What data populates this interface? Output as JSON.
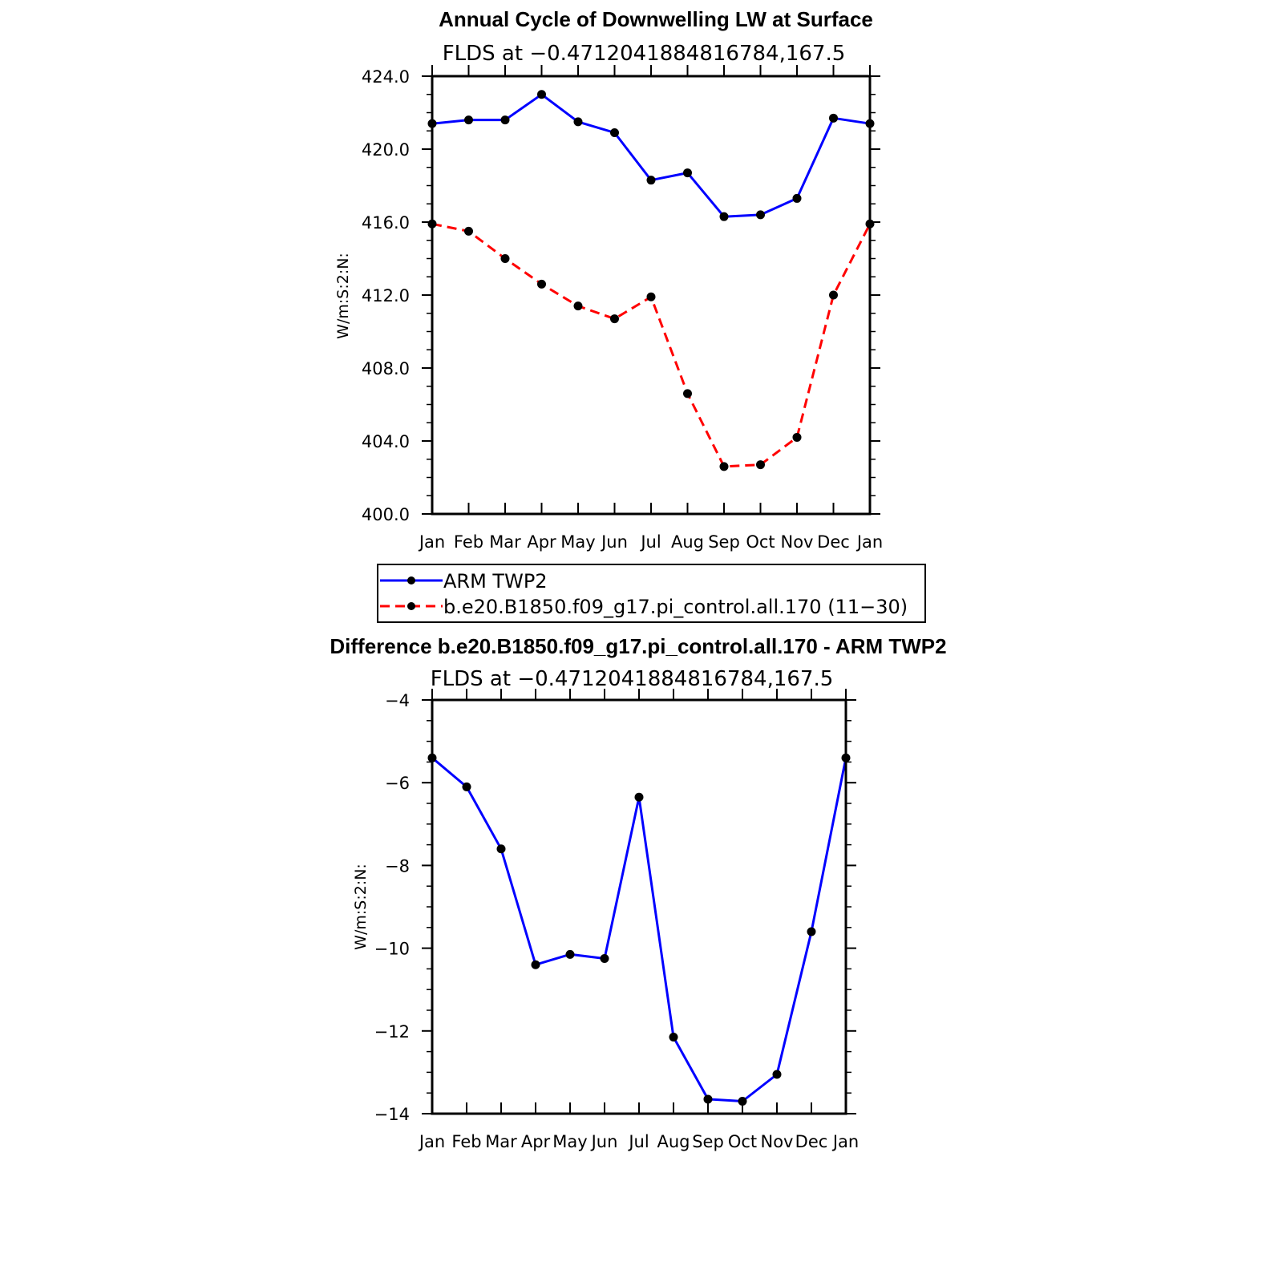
{
  "chart_data": [
    {
      "type": "line",
      "title": "Annual Cycle of Downwelling LW at Surface",
      "subtitle": "FLDS at −0.4712041884816784,167.5",
      "ylabel": "W/m:S:2:N:",
      "xlabel": "",
      "categories": [
        "Jan",
        "Feb",
        "Mar",
        "Apr",
        "May",
        "Jun",
        "Jul",
        "Aug",
        "Sep",
        "Oct",
        "Nov",
        "Dec",
        "Jan"
      ],
      "ylim": [
        400,
        424
      ],
      "yticks": [
        "400.0",
        "404.0",
        "408.0",
        "412.0",
        "416.0",
        "420.0",
        "424.0"
      ],
      "grid": false,
      "legend_position": "below",
      "series": [
        {
          "name": "ARM TWP2",
          "color": "#0000ff",
          "dash": "solid",
          "values": [
            421.4,
            421.6,
            421.6,
            423.0,
            421.5,
            420.9,
            418.3,
            418.7,
            416.3,
            416.4,
            417.3,
            421.7,
            421.4
          ]
        },
        {
          "name": "b.e20.B1850.f09_g17.pi_control.all.170 (11−30)",
          "color": "#ff0000",
          "dash": "dashed",
          "values": [
            415.9,
            415.5,
            414.0,
            412.6,
            411.4,
            410.7,
            411.9,
            406.6,
            402.6,
            402.7,
            404.2,
            412.0,
            415.9
          ]
        }
      ]
    },
    {
      "type": "line",
      "title": "Difference b.e20.B1850.f09_g17.pi_control.all.170 - ARM TWP2",
      "subtitle": "FLDS at −0.4712041884816784,167.5",
      "ylabel": "W/m:S:2:N:",
      "xlabel": "",
      "categories": [
        "Jan",
        "Feb",
        "Mar",
        "Apr",
        "May",
        "Jun",
        "Jul",
        "Aug",
        "Sep",
        "Oct",
        "Nov",
        "Dec",
        "Jan"
      ],
      "ylim": [
        -14,
        -4
      ],
      "yticks": [
        "−14",
        "−12",
        "−10",
        "−8",
        "−6",
        "−4"
      ],
      "grid": false,
      "series": [
        {
          "color": "#0000ff",
          "dash": "solid",
          "values": [
            -5.4,
            -6.1,
            -7.6,
            -10.4,
            -10.15,
            -10.25,
            -6.35,
            -12.15,
            -13.65,
            -13.7,
            -13.05,
            -9.6,
            -5.4
          ]
        }
      ]
    }
  ]
}
